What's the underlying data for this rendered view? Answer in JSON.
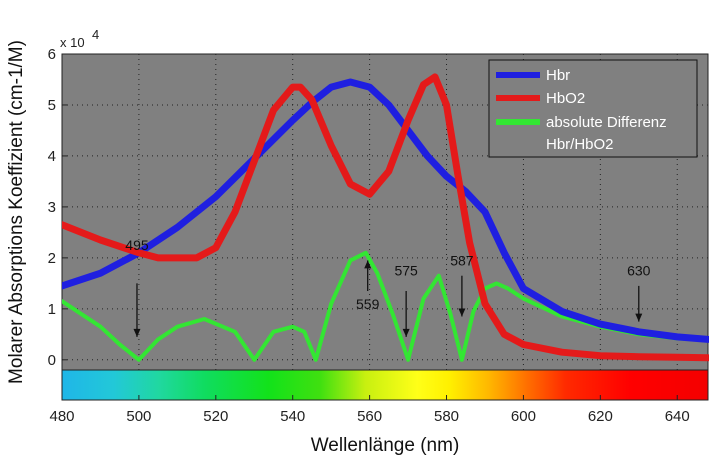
{
  "chart_data": {
    "type": "line",
    "xlabel": "Wellenlänge (nm)",
    "ylabel": "Molarer Absorptions Koeffizient (cm-1/M)",
    "y_multiplier": "x 10",
    "y_multiplier_exp": "4",
    "xlim": [
      480,
      648
    ],
    "ylim": [
      -0.2,
      6
    ],
    "x_ticks": [
      480,
      500,
      520,
      540,
      560,
      580,
      600,
      620,
      640
    ],
    "y_ticks": [
      0,
      1,
      2,
      3,
      4,
      5,
      6
    ],
    "grid": true,
    "legend_position": "top-right",
    "series": [
      {
        "name": "Hbr",
        "color": "#1f1fe0",
        "x": [
          480,
          490,
          500,
          510,
          520,
          530,
          540,
          545,
          550,
          555,
          560,
          565,
          570,
          575,
          580,
          585,
          590,
          595,
          600,
          610,
          620,
          630,
          640,
          648
        ],
        "y": [
          1.45,
          1.7,
          2.1,
          2.6,
          3.2,
          3.95,
          4.7,
          5.05,
          5.35,
          5.45,
          5.35,
          5.0,
          4.5,
          4.0,
          3.6,
          3.3,
          2.9,
          2.1,
          1.4,
          0.95,
          0.7,
          0.55,
          0.45,
          0.4
        ]
      },
      {
        "name": "HbO2",
        "color": "#e41a1a",
        "x": [
          480,
          490,
          500,
          505,
          510,
          515,
          520,
          525,
          530,
          535,
          540,
          542,
          545,
          550,
          555,
          560,
          565,
          570,
          574,
          577,
          580,
          583,
          586,
          590,
          595,
          600,
          610,
          620,
          630,
          640,
          648
        ],
        "y": [
          2.65,
          2.35,
          2.1,
          2.0,
          2.0,
          2.0,
          2.2,
          2.9,
          3.9,
          4.9,
          5.35,
          5.35,
          5.1,
          4.2,
          3.45,
          3.25,
          3.7,
          4.7,
          5.4,
          5.55,
          5.0,
          3.6,
          2.3,
          1.1,
          0.5,
          0.3,
          0.15,
          0.08,
          0.06,
          0.05,
          0.04
        ]
      },
      {
        "name": "absolute Differenz Hbr/HbO2",
        "color": "#33e633",
        "x": [
          480,
          485,
          490,
          495,
          500,
          505,
          510,
          517,
          525,
          530,
          535,
          540,
          543,
          546,
          550,
          555,
          559,
          562,
          566,
          570,
          574,
          578,
          581,
          584,
          587,
          590,
          593,
          596,
          600,
          610,
          620,
          630,
          640,
          648
        ],
        "y": [
          1.15,
          0.9,
          0.65,
          0.3,
          0.0,
          0.4,
          0.65,
          0.8,
          0.55,
          0.0,
          0.55,
          0.65,
          0.55,
          0.0,
          1.1,
          1.95,
          2.1,
          1.7,
          0.9,
          0.0,
          1.2,
          1.65,
          0.9,
          0.0,
          0.95,
          1.4,
          1.5,
          1.4,
          1.2,
          0.85,
          0.65,
          0.5,
          0.42,
          0.38
        ]
      }
    ],
    "legend": [
      "Hbr",
      "HbO2",
      "absolute Differenz",
      "Hbr/HbO2"
    ],
    "annotations": [
      {
        "label": "495",
        "x": 499.5,
        "text_y": 2.15,
        "arrow_from": 1.5,
        "arrow_to": 0.45
      },
      {
        "label": "559",
        "x": 559.5,
        "text_y": 1.0,
        "arrow_from": 1.35,
        "arrow_to": 1.95
      },
      {
        "label": "575",
        "x": 569.5,
        "text_y": 1.65,
        "arrow_from": 1.35,
        "arrow_to": 0.45
      },
      {
        "label": "587",
        "x": 584,
        "text_y": 1.85,
        "arrow_from": 1.65,
        "arrow_to": 0.85
      },
      {
        "label": "630",
        "x": 630,
        "text_y": 1.65,
        "arrow_from": 1.45,
        "arrow_to": 0.75
      }
    ],
    "colorbar": true
  }
}
